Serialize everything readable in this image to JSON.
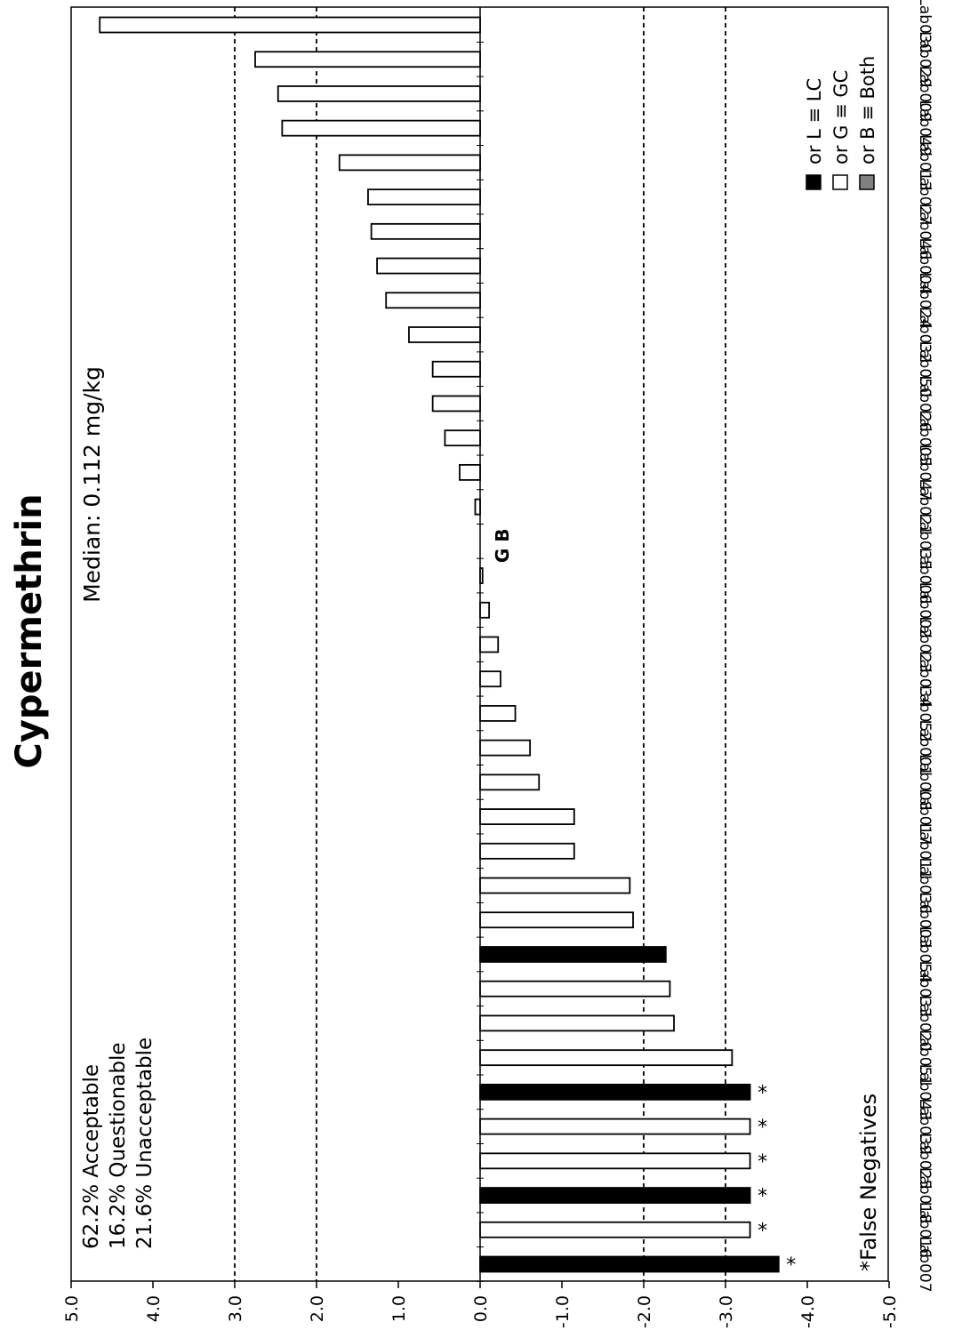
{
  "chart_data": {
    "type": "bar",
    "orientation": "rotated",
    "title": "Cypermethrin",
    "median_label": "Median: 0.112 mg/kg",
    "stats": [
      "62.2% Acceptable",
      "16.2% Questionable",
      "21.6% Unacceptable"
    ],
    "footnote": "*False Negatives",
    "ylim": [
      -5,
      5
    ],
    "y_ticks": [
      "5.0",
      "4.0",
      "3.0",
      "2.0",
      "1.0",
      "0.0",
      "-1.0",
      "-2.0",
      "-3.0",
      "-4.0",
      "-5.0"
    ],
    "reference_lines": [
      3,
      2,
      -2,
      -3
    ],
    "grid": false,
    "legend": {
      "placement": "top-right",
      "entries": [
        {
          "label": "or L ≡ LC",
          "color": "#000000"
        },
        {
          "label": "or G ≡ GC",
          "color": "#ffffff"
        },
        {
          "label": "or B ≡ Both",
          "color": "#808080"
        }
      ]
    },
    "categories": [
      "Lab007",
      "Lab016",
      "Lab018",
      "Lab025",
      "Lab039",
      "Lab043",
      "Lab051",
      "Lab020",
      "Lab033",
      "Lab054",
      "Lab003",
      "Lab036",
      "Lab011",
      "Lab017",
      "Lab008",
      "Lab001",
      "Lab052",
      "Lab034",
      "Lab023",
      "Lab002",
      "Lab006",
      "Lab035",
      "Lab021",
      "Lab047",
      "Lab005",
      "Lab026",
      "Lab050",
      "Lab032",
      "Lab024",
      "Lab004",
      "Lab046",
      "Lab027",
      "Lab013",
      "Lab049",
      "Lab009",
      "Lab029",
      "Lab030"
    ],
    "values": [
      -3.65,
      -3.3,
      -3.3,
      -3.3,
      -3.3,
      -3.3,
      -3.08,
      -2.37,
      -2.32,
      -2.27,
      -1.87,
      -1.83,
      -1.15,
      -1.15,
      -0.72,
      -0.61,
      -0.43,
      -0.25,
      -0.22,
      -0.11,
      -0.03,
      0.0,
      0.06,
      0.25,
      0.43,
      0.58,
      0.58,
      0.87,
      1.15,
      1.26,
      1.33,
      1.37,
      1.72,
      2.42,
      2.47,
      2.75,
      4.65
    ],
    "methods": [
      "L",
      "G",
      "L",
      "G",
      "G",
      "L",
      "G",
      "G",
      "G",
      "L",
      "G",
      "G",
      "G",
      "G",
      "G",
      "G",
      "G",
      "G",
      "G",
      "G",
      "G",
      "",
      "G",
      "G",
      "G",
      "G",
      "G",
      "G",
      "G",
      "G",
      "G",
      "G",
      "G",
      "G",
      "G",
      "G",
      "G"
    ],
    "false_negative": [
      true,
      true,
      true,
      true,
      true,
      true,
      false,
      false,
      false,
      false,
      false,
      false,
      false,
      false,
      false,
      false,
      false,
      false,
      false,
      false,
      false,
      false,
      false,
      false,
      false,
      false,
      false,
      false,
      false,
      false,
      false,
      false,
      false,
      false,
      false,
      false,
      false
    ],
    "false_negative_marker": "*",
    "annotations": [
      {
        "category": "Lab035",
        "text": "G B"
      }
    ]
  }
}
